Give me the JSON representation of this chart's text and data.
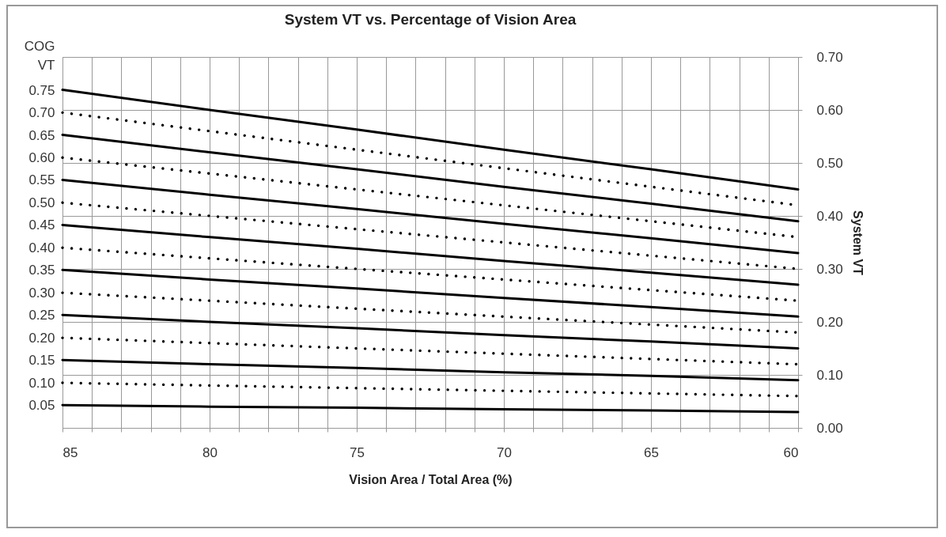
{
  "chart_data": {
    "type": "line",
    "title": "System VT vs. Percentage of Vision Area",
    "xlabel": "Vision Area / Total Area (%)",
    "ylabel": "COG VT",
    "y2label": "System VT",
    "x": [
      85,
      80,
      75,
      70,
      65,
      60
    ],
    "xlim": [
      85,
      60
    ],
    "xticks": [
      85,
      {
        "value": 84,
        "label": null
      },
      {
        "value": 83,
        "label": null
      },
      {
        "value": 82,
        "label": null
      },
      {
        "value": 81,
        "label": null
      },
      80,
      {
        "value": 79,
        "label": null
      },
      {
        "value": 78,
        "label": null
      },
      {
        "value": 77,
        "label": null
      },
      {
        "value": 76,
        "label": null
      },
      75,
      {
        "value": 74,
        "label": null
      },
      {
        "value": 73,
        "label": null
      },
      {
        "value": 72,
        "label": null
      },
      {
        "value": 71,
        "label": null
      },
      70,
      {
        "value": 69,
        "label": null
      },
      {
        "value": 68,
        "label": null
      },
      {
        "value": 67,
        "label": null
      },
      {
        "value": 66,
        "label": null
      },
      65,
      {
        "value": 64,
        "label": null
      },
      {
        "value": 63,
        "label": null
      },
      {
        "value": 62,
        "label": null
      },
      {
        "value": 61,
        "label": null
      },
      60
    ],
    "ylim": [
      0,
      0.824
    ],
    "yticks": [
      {
        "value": 0.05,
        "label": "0.05"
      },
      {
        "value": 0.1,
        "label": "0.10"
      },
      {
        "value": 0.15,
        "label": "0.15"
      },
      {
        "value": 0.2,
        "label": "0.20"
      },
      {
        "value": 0.25,
        "label": "0.25"
      },
      {
        "value": 0.3,
        "label": "0.30"
      },
      {
        "value": 0.35,
        "label": "0.35"
      },
      {
        "value": 0.4,
        "label": "0.40"
      },
      {
        "value": 0.45,
        "label": "0.45"
      },
      {
        "value": 0.5,
        "label": "0.50"
      },
      {
        "value": 0.55,
        "label": "0.55"
      },
      {
        "value": 0.6,
        "label": "0.60"
      },
      {
        "value": 0.65,
        "label": "0.65"
      },
      {
        "value": 0.7,
        "label": "0.70"
      },
      {
        "value": 0.75,
        "label": "0.75"
      }
    ],
    "y2lim": [
      0,
      0.7
    ],
    "y2ticks": [
      {
        "value": 0,
        "label": "0.00"
      },
      {
        "value": 0.1,
        "label": "0.10"
      },
      {
        "value": 0.2,
        "label": "0.20"
      },
      {
        "value": 0.3,
        "label": "0.30"
      },
      {
        "value": 0.4,
        "label": "0.40"
      },
      {
        "value": 0.5,
        "label": "0.50"
      },
      {
        "value": 0.6,
        "label": "0.60"
      },
      {
        "value": 0.7,
        "label": "0.70"
      }
    ],
    "grid": true,
    "legend": false,
    "series": [
      {
        "color": "#000000",
        "axis": "y2",
        "line_style": "solid",
        "values": [
          0.043,
          0.04,
          0.038,
          0.035,
          0.033,
          0.03
        ]
      },
      {
        "color": "#000000",
        "axis": "y2",
        "line_style": "dotted",
        "values": [
          0.085,
          0.08,
          0.075,
          0.07,
          0.065,
          0.06
        ]
      },
      {
        "color": "#000000",
        "axis": "y2",
        "line_style": "solid",
        "values": [
          0.128,
          0.12,
          0.113,
          0.105,
          0.098,
          0.09
        ]
      },
      {
        "color": "#000000",
        "axis": "y2",
        "line_style": "dotted",
        "values": [
          0.17,
          0.16,
          0.15,
          0.14,
          0.13,
          0.12
        ]
      },
      {
        "color": "#000000",
        "axis": "y2",
        "line_style": "solid",
        "values": [
          0.213,
          0.2,
          0.188,
          0.175,
          0.163,
          0.15
        ]
      },
      {
        "color": "#000000",
        "axis": "y2",
        "line_style": "dotted",
        "values": [
          0.255,
          0.24,
          0.225,
          0.21,
          0.195,
          0.18
        ]
      },
      {
        "color": "#000000",
        "axis": "y2",
        "line_style": "solid",
        "values": [
          0.298,
          0.28,
          0.263,
          0.245,
          0.228,
          0.21
        ]
      },
      {
        "color": "#000000",
        "axis": "y2",
        "line_style": "dotted",
        "values": [
          0.34,
          0.32,
          0.3,
          0.28,
          0.26,
          0.24
        ]
      },
      {
        "color": "#000000",
        "axis": "y2",
        "line_style": "solid",
        "values": [
          0.383,
          0.36,
          0.338,
          0.315,
          0.293,
          0.27
        ]
      },
      {
        "color": "#000000",
        "axis": "y2",
        "line_style": "dotted",
        "values": [
          0.425,
          0.4,
          0.375,
          0.35,
          0.325,
          0.3
        ]
      },
      {
        "color": "#000000",
        "axis": "y2",
        "line_style": "solid",
        "values": [
          0.468,
          0.44,
          0.413,
          0.385,
          0.358,
          0.33
        ]
      },
      {
        "color": "#000000",
        "axis": "y2",
        "line_style": "dotted",
        "values": [
          0.51,
          0.48,
          0.45,
          0.42,
          0.39,
          0.36
        ]
      },
      {
        "color": "#000000",
        "axis": "y2",
        "line_style": "solid",
        "values": [
          0.553,
          0.52,
          0.488,
          0.455,
          0.423,
          0.39
        ]
      },
      {
        "color": "#000000",
        "axis": "y2",
        "line_style": "dotted",
        "values": [
          0.595,
          0.56,
          0.525,
          0.49,
          0.455,
          0.42
        ]
      },
      {
        "color": "#000000",
        "axis": "y2",
        "line_style": "solid",
        "values": [
          0.638,
          0.6,
          0.563,
          0.525,
          0.488,
          0.45
        ]
      }
    ]
  }
}
